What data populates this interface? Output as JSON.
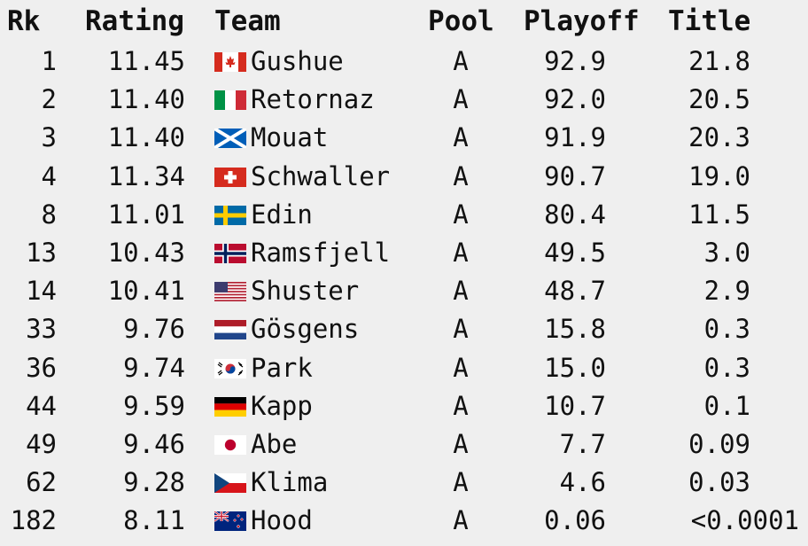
{
  "headers": {
    "rk": "Rk",
    "rating": "Rating",
    "team": "Team",
    "pool": "Pool",
    "playoff": "Playoff",
    "title": "Title"
  },
  "rows": [
    {
      "rk": "1",
      "rating": "11.45",
      "flag": "canada-flag-icon",
      "team": "Gushue",
      "pool": "A",
      "playoff": "92.9",
      "title": "21.8"
    },
    {
      "rk": "2",
      "rating": "11.40",
      "flag": "italy-flag-icon",
      "team": "Retornaz",
      "pool": "A",
      "playoff": "92.0",
      "title": "20.5"
    },
    {
      "rk": "3",
      "rating": "11.40",
      "flag": "scotland-flag-icon",
      "team": "Mouat",
      "pool": "A",
      "playoff": "91.9",
      "title": "20.3"
    },
    {
      "rk": "4",
      "rating": "11.34",
      "flag": "switzerland-flag-icon",
      "team": "Schwaller",
      "pool": "A",
      "playoff": "90.7",
      "title": "19.0"
    },
    {
      "rk": "8",
      "rating": "11.01",
      "flag": "sweden-flag-icon",
      "team": "Edin",
      "pool": "A",
      "playoff": "80.4",
      "title": "11.5"
    },
    {
      "rk": "13",
      "rating": "10.43",
      "flag": "norway-flag-icon",
      "team": "Ramsfjell",
      "pool": "A",
      "playoff": "49.5",
      "title": "3.0"
    },
    {
      "rk": "14",
      "rating": "10.41",
      "flag": "usa-flag-icon",
      "team": "Shuster",
      "pool": "A",
      "playoff": "48.7",
      "title": "2.9"
    },
    {
      "rk": "33",
      "rating": "9.76",
      "flag": "netherlands-flag-icon",
      "team": "Gösgens",
      "pool": "A",
      "playoff": "15.8",
      "title": "0.3"
    },
    {
      "rk": "36",
      "rating": "9.74",
      "flag": "south-korea-flag-icon",
      "team": "Park",
      "pool": "A",
      "playoff": "15.0",
      "title": "0.3"
    },
    {
      "rk": "44",
      "rating": "9.59",
      "flag": "germany-flag-icon",
      "team": "Kapp",
      "pool": "A",
      "playoff": "10.7",
      "title": "0.1"
    },
    {
      "rk": "49",
      "rating": "9.46",
      "flag": "japan-flag-icon",
      "team": "Abe",
      "pool": "A",
      "playoff": "7.7",
      "title": "0.09"
    },
    {
      "rk": "62",
      "rating": "9.28",
      "flag": "czechia-flag-icon",
      "team": "Klima",
      "pool": "A",
      "playoff": "4.6",
      "title": "0.03"
    },
    {
      "rk": "182",
      "rating": "8.11",
      "flag": "new-zealand-flag-icon",
      "team": "Hood",
      "pool": "A",
      "playoff": "0.06",
      "title": "<0.0001"
    }
  ]
}
